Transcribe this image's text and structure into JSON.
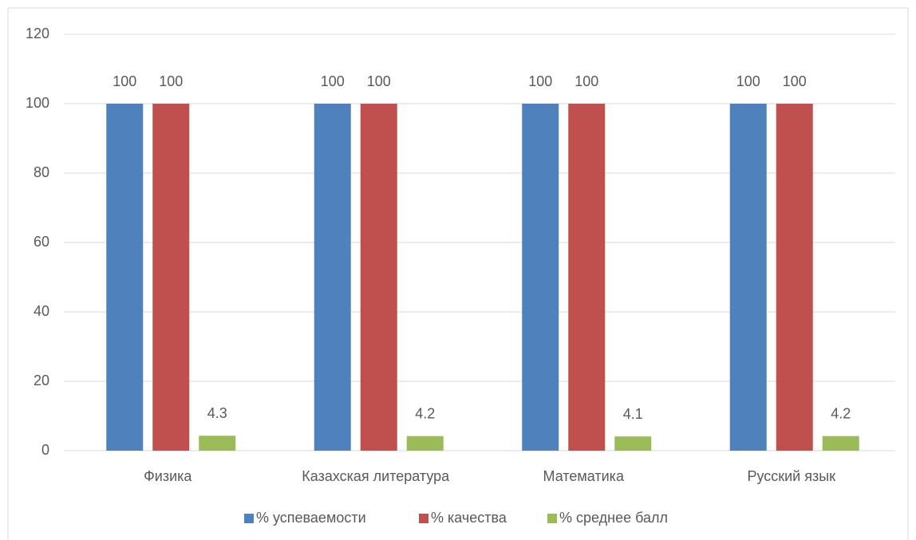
{
  "chart_data": {
    "type": "bar",
    "categories": [
      "Физика",
      "Казахская литература",
      "Математика",
      "Русский язык"
    ],
    "series": [
      {
        "name": "% успеваемости",
        "color": "#4f81bd",
        "values": [
          100,
          100,
          100,
          100
        ]
      },
      {
        "name": "% качества",
        "color": "#c0504d",
        "values": [
          100,
          100,
          100,
          100
        ]
      },
      {
        "name": "% среднее балл",
        "color": "#9bbb59",
        "values": [
          4.3,
          4.2,
          4.1,
          4.2
        ]
      }
    ],
    "ylim": [
      0,
      120
    ],
    "yticks": [
      0,
      20,
      40,
      60,
      80,
      100,
      120
    ],
    "grid": true,
    "legend": "bottom"
  }
}
